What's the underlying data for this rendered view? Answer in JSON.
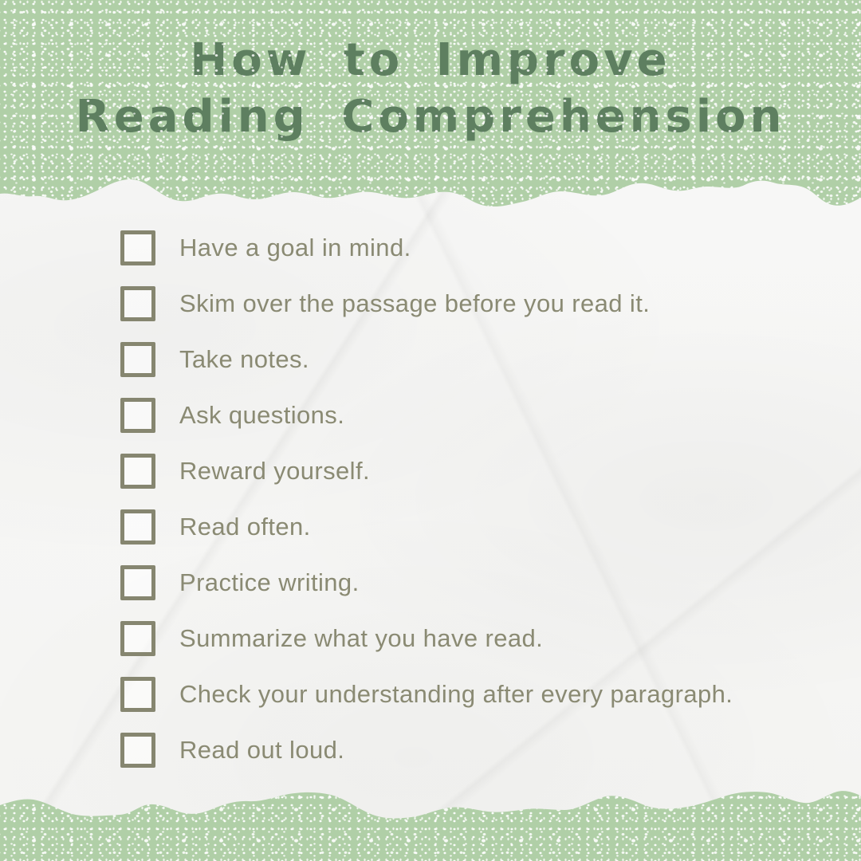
{
  "title": {
    "line1": "How to Improve",
    "line2": "Reading Comprehension"
  },
  "checklist": {
    "items": [
      "Have a goal in mind.",
      "Skim over the passage before you read it.",
      "Take notes.",
      "Ask questions.",
      "Reward yourself.",
      "Read often.",
      "Practice writing.",
      "Summarize what you have read.",
      "Check your understanding after every paragraph.",
      "Read out loud."
    ]
  },
  "colors": {
    "banner_green": "#b0cfa7",
    "title_green": "#5e7f60",
    "checkbox_olive": "#868670",
    "item_text_olive": "#8a8a73",
    "paper_white": "#f6f6f4"
  }
}
